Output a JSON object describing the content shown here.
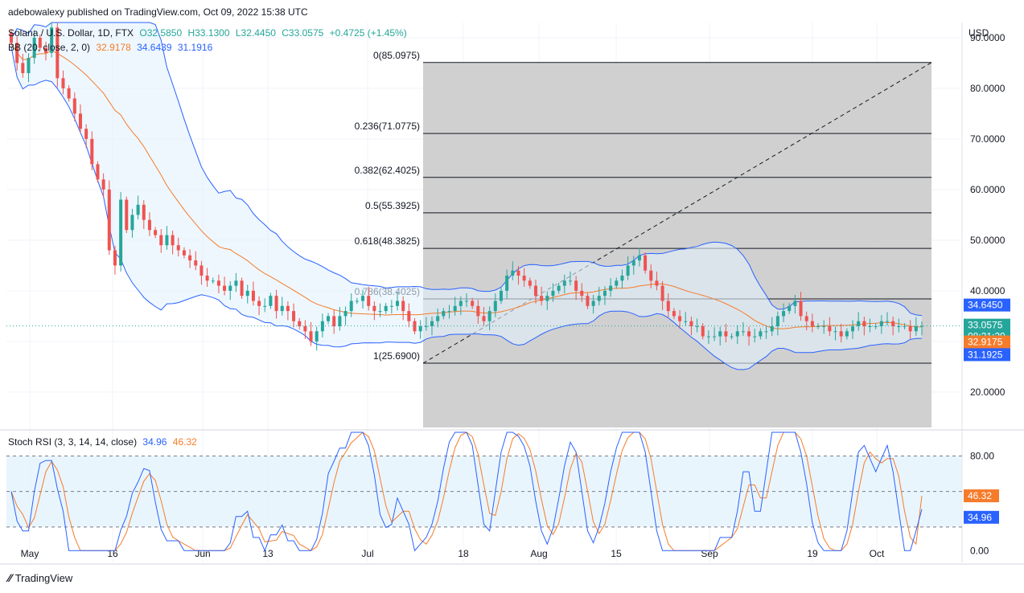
{
  "attribution": "adebowalexy published on TradingView.com, Oct 09, 2022 15:38 UTC",
  "legend": {
    "symbol": "Solana / U.S. Dollar, 1D, FTX",
    "ohlc": {
      "o": "O32.5850",
      "h": "H33.1300",
      "l": "L32.4450",
      "c": "C33.0575",
      "change": "+0.4725 (+1.45%)"
    },
    "bb": {
      "label": "BB (20, close, 2, 0)",
      "basis": "32.9178",
      "upper": "34.6439",
      "lower": "31.1916"
    },
    "stoch": {
      "label": "Stoch RSI (3, 3, 14, 14, close)",
      "k": "34.96",
      "d": "46.32"
    }
  },
  "currency": "USD",
  "footer_brand": "TradingView",
  "colors": {
    "up": "#26a69a",
    "down": "#ef5350",
    "bb_band": "#2962ff",
    "bb_basis": "#f57c2b",
    "fill": "#e3f2fd",
    "fib_bg": "#c8c8c8"
  },
  "chart_data": [
    {
      "type": "candlestick",
      "title": "Solana / U.S. Dollar, 1D, FTX",
      "x_ticks": [
        "May",
        "16",
        "Jun",
        "13",
        "Jul",
        "18",
        "Aug",
        "15",
        "Sep",
        "19",
        "Oct"
      ],
      "y_ticks": [
        "90.0000",
        "80.0000",
        "70.0000",
        "60.0000",
        "50.0000",
        "40.0000",
        "20.0000"
      ],
      "ylim": [
        13,
        93
      ],
      "price_labels": {
        "upper": "34.6450",
        "close": "33.0575",
        "countdown": "08:21:20",
        "basis": "32.9175",
        "lower": "31.1925"
      },
      "fib_levels": [
        {
          "label": "0(85.0975)",
          "value": 85.0975
        },
        {
          "label": "0.236(71.0775)",
          "value": 71.0775
        },
        {
          "label": "0.382(62.4025)",
          "value": 62.4025
        },
        {
          "label": "0.5(55.3925)",
          "value": 55.3925
        },
        {
          "label": "0.618(48.3825)",
          "value": 48.3825
        },
        {
          "label": "0.786(38.4025)",
          "value": 38.4025
        },
        {
          "label": "1(25.6900)",
          "value": 25.69
        }
      ],
      "closes": [
        89,
        85,
        83,
        86,
        90,
        88,
        87,
        92,
        82,
        80,
        78,
        75,
        72,
        70,
        65,
        62,
        60,
        48,
        45,
        58,
        52,
        55,
        57,
        54,
        52,
        51,
        49,
        51,
        49,
        48,
        47,
        46,
        45,
        43,
        42,
        42,
        41,
        40,
        41,
        42,
        39,
        40,
        38,
        37,
        37,
        39,
        36,
        37,
        36,
        34,
        33,
        32,
        30,
        32,
        34,
        35,
        33,
        35,
        36,
        38,
        38,
        39,
        37,
        36,
        36,
        37,
        37,
        38,
        36,
        34,
        32,
        33,
        33,
        34,
        35,
        36,
        36,
        37,
        38,
        38,
        37,
        35,
        34,
        36,
        38,
        40,
        43,
        44,
        43,
        42,
        41,
        39,
        38,
        39,
        40,
        41,
        42,
        42,
        40,
        39,
        37,
        38,
        39,
        40,
        41,
        42,
        43,
        45,
        46,
        47,
        44,
        42,
        41,
        38,
        36,
        35,
        34,
        34,
        33,
        33,
        31,
        31,
        31,
        32,
        31,
        31,
        32,
        32,
        31,
        31,
        32,
        32,
        33,
        35,
        36,
        37,
        38,
        35,
        34,
        33,
        33,
        33,
        32,
        32,
        31,
        32,
        33,
        34,
        33,
        33,
        33,
        34,
        34,
        33,
        33,
        33,
        32,
        33,
        33.0575
      ],
      "stoch_k_last": 34.96,
      "stoch_d_last": 46.32
    },
    {
      "type": "line",
      "title": "Stoch RSI (3, 3, 14, 14, close)",
      "y_ticks": [
        "80.00",
        "0.00"
      ],
      "ylim": [
        -10,
        100
      ],
      "bands": [
        20,
        50,
        80
      ]
    }
  ]
}
